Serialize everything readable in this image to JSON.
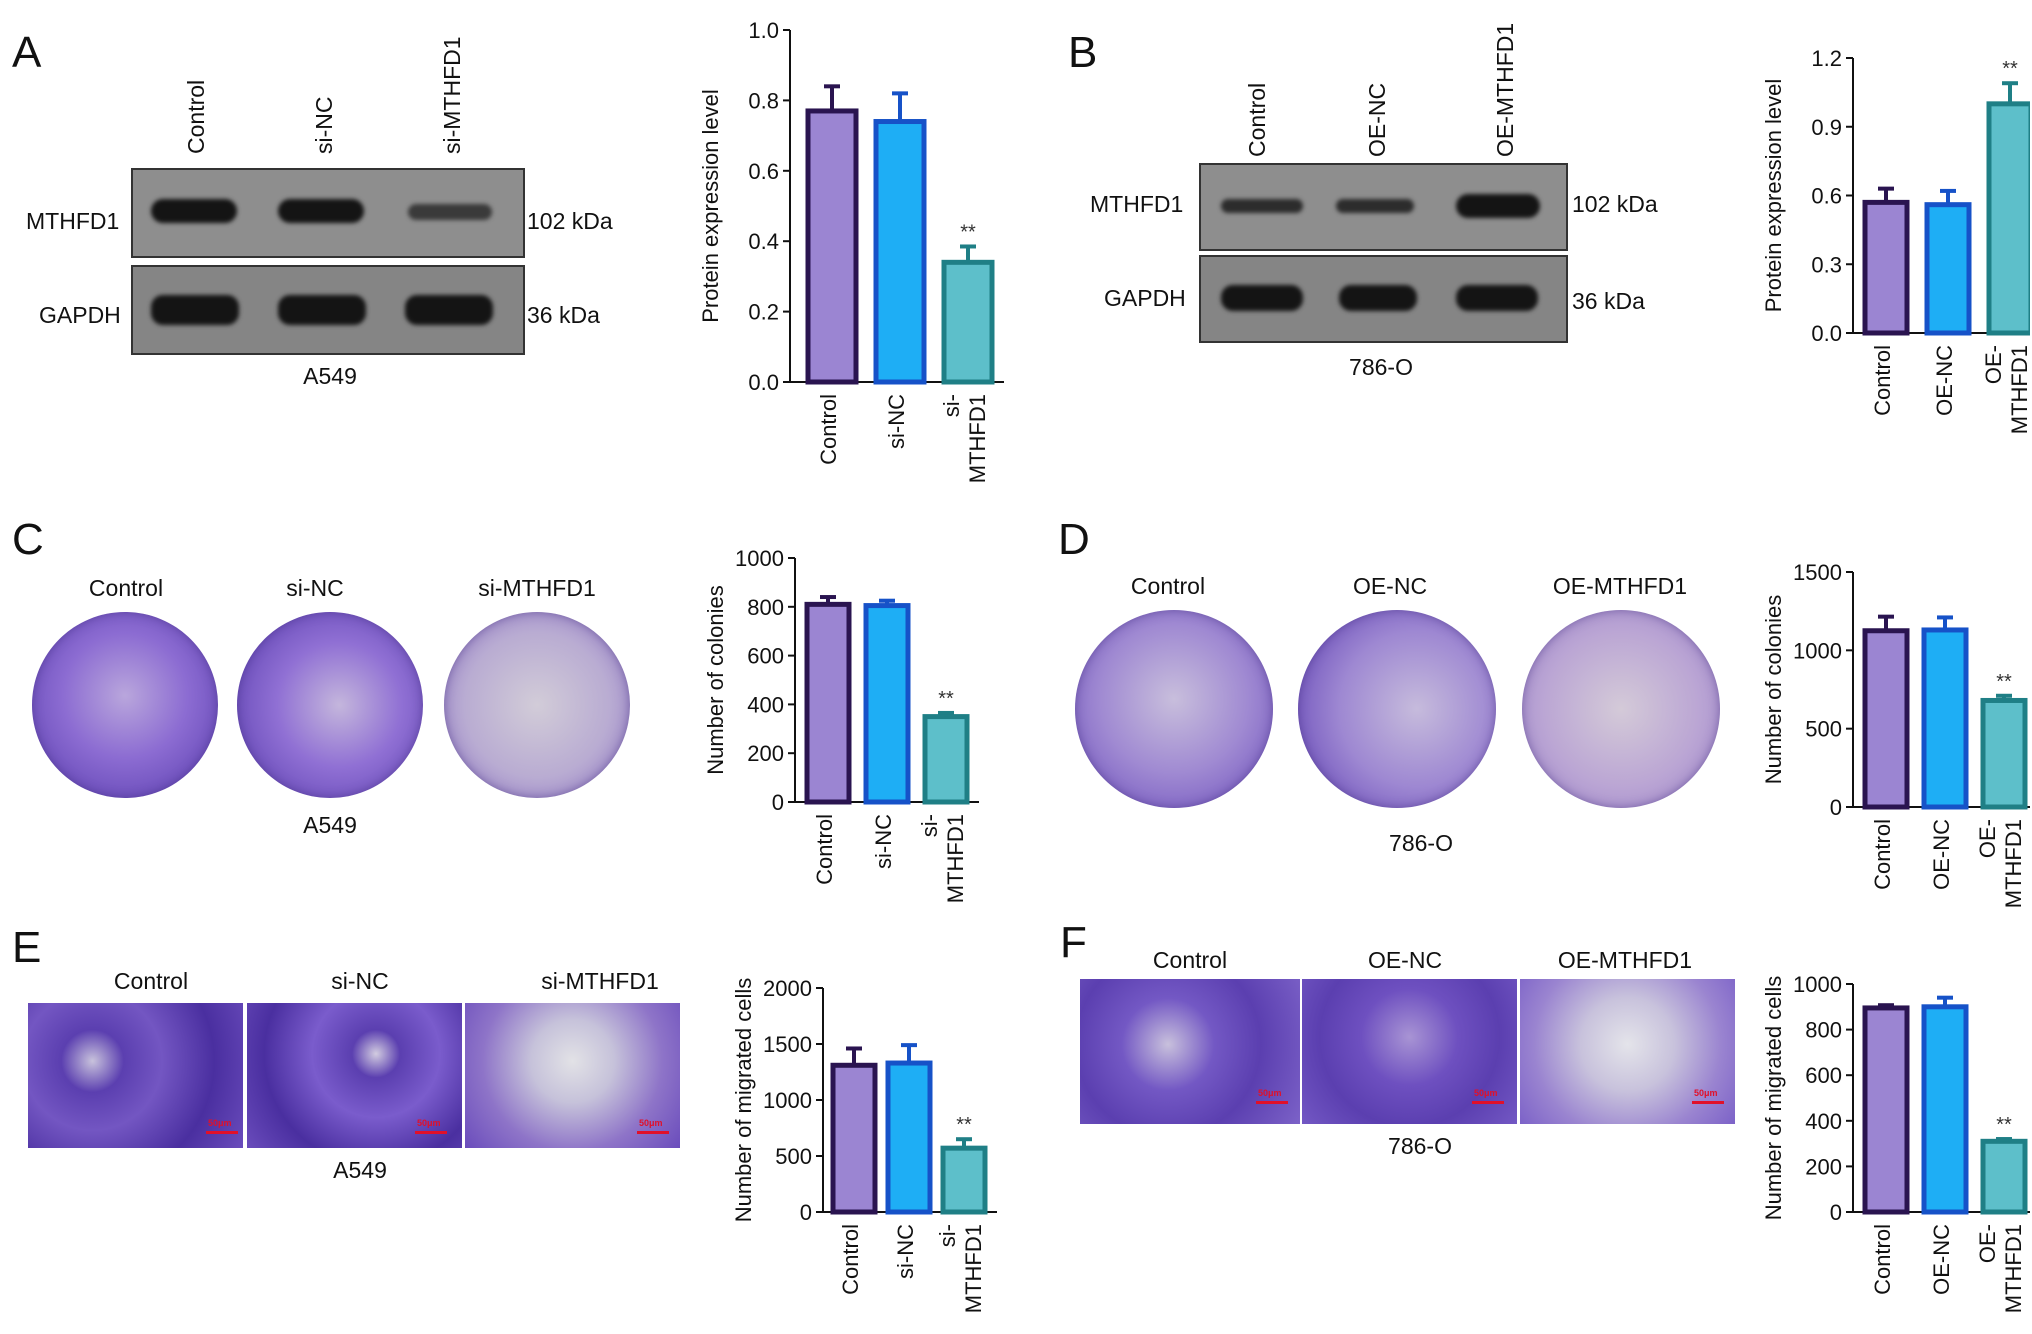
{
  "panels": {
    "A": {
      "letter": "A",
      "lanes": [
        "Control",
        "si-NC",
        "si-MTHFD1"
      ],
      "proteins": [
        "MTHFD1",
        "GAPDH"
      ],
      "sizes": [
        "102 kDa",
        "36 kDa"
      ],
      "cell_line": "A549"
    },
    "B": {
      "letter": "B",
      "lanes": [
        "Control",
        "OE-NC",
        "OE-MTHFD1"
      ],
      "proteins": [
        "MTHFD1",
        "GAPDH"
      ],
      "sizes": [
        "102 kDa",
        "36 kDa"
      ],
      "cell_line": "786-O"
    },
    "C": {
      "letter": "C",
      "groups": [
        "Control",
        "si-NC",
        "si-MTHFD1"
      ],
      "cell_line": "A549"
    },
    "D": {
      "letter": "D",
      "groups": [
        "Control",
        "OE-NC",
        "OE-MTHFD1"
      ],
      "cell_line": "786-O"
    },
    "E": {
      "letter": "E",
      "groups": [
        "Control",
        "si-NC",
        "si-MTHFD1"
      ],
      "cell_line": "A549",
      "scale_text": "50μm"
    },
    "F": {
      "letter": "F",
      "groups": [
        "Control",
        "OE-NC",
        "OE-MTHFD1"
      ],
      "cell_line": "786-O",
      "scale_text": "50μm"
    }
  },
  "colors": {
    "control": "#9b85d2",
    "nc": "#1eaef5",
    "treat": "#5dbfca",
    "control_edge": "#2a1450",
    "nc_edge": "#1652c8",
    "treat_edge": "#1f7f86",
    "crystal_violet": "#5b3fb0"
  },
  "chart_data": [
    {
      "id": "A",
      "type": "bar",
      "categories": [
        "Control",
        "si-NC",
        "si-\nMTHFD1"
      ],
      "values": [
        0.77,
        0.74,
        0.34
      ],
      "errors": [
        0.07,
        0.08,
        0.045
      ],
      "sig": [
        "",
        "",
        "**"
      ],
      "ylabel": "Protein expression level",
      "ylim": [
        0,
        1.0
      ],
      "yticks": [
        "0.0",
        "0.2",
        "0.4",
        "0.6",
        "0.8",
        "1.0"
      ]
    },
    {
      "id": "B",
      "type": "bar",
      "categories": [
        "Control",
        "OE-NC",
        "OE-\nMTHFD1"
      ],
      "values": [
        0.57,
        0.56,
        1.0
      ],
      "errors": [
        0.06,
        0.06,
        0.09
      ],
      "sig": [
        "",
        "",
        "**"
      ],
      "ylabel": "Protein expression level",
      "ylim": [
        0,
        1.2
      ],
      "yticks": [
        "0.0",
        "0.3",
        "0.6",
        "0.9",
        "1.2"
      ]
    },
    {
      "id": "C",
      "type": "bar",
      "categories": [
        "Control",
        "si-NC",
        "si-\nMTHFD1"
      ],
      "values": [
        810,
        805,
        350
      ],
      "errors": [
        30,
        20,
        15
      ],
      "sig": [
        "",
        "",
        "**"
      ],
      "ylabel": "Number of colonies",
      "ylim": [
        0,
        1000
      ],
      "yticks": [
        "0",
        "200",
        "400",
        "600",
        "800",
        "1000"
      ]
    },
    {
      "id": "D",
      "type": "bar",
      "categories": [
        "Control",
        "OE-NC",
        "OE-\nMTHFD1"
      ],
      "values": [
        1125,
        1130,
        680
      ],
      "errors": [
        90,
        80,
        30
      ],
      "sig": [
        "",
        "",
        "**"
      ],
      "ylabel": "Number of colonies",
      "ylim": [
        0,
        1500
      ],
      "yticks": [
        "0",
        "500",
        "1000",
        "1500"
      ]
    },
    {
      "id": "E",
      "type": "bar",
      "categories": [
        "Control",
        "si-NC",
        "si-\nMTHFD1"
      ],
      "values": [
        1310,
        1330,
        570
      ],
      "errors": [
        150,
        160,
        80
      ],
      "sig": [
        "",
        "",
        "**"
      ],
      "ylabel": "Number of migrated cells",
      "ylim": [
        0,
        2000
      ],
      "yticks": [
        "0",
        "500",
        "1000",
        "1500",
        "2000"
      ]
    },
    {
      "id": "F",
      "type": "bar",
      "categories": [
        "Control",
        "OE-NC",
        "OE-\nMTHFD1"
      ],
      "values": [
        895,
        900,
        310
      ],
      "errors": [
        12,
        40,
        10
      ],
      "sig": [
        "",
        "",
        "**"
      ],
      "ylabel": "Number of migrated cells",
      "ylim": [
        0,
        1000
      ],
      "yticks": [
        "0",
        "200",
        "400",
        "600",
        "800",
        "1000"
      ]
    }
  ]
}
